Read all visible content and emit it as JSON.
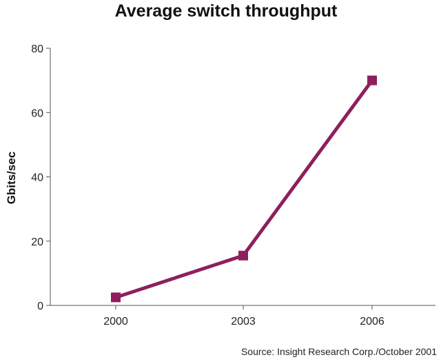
{
  "chart_data": {
    "type": "line",
    "title": "Average switch throughput",
    "ylabel": "Gbits/sec",
    "xlabel": "",
    "categories": [
      "2000",
      "2003",
      "2006"
    ],
    "series": [
      {
        "values": [
          2.5,
          15.5,
          70
        ]
      }
    ],
    "ylim": [
      0,
      80
    ],
    "yticks": [
      0,
      20,
      40,
      60,
      80
    ],
    "grid": false,
    "legend": "none",
    "source": "Source: Insight Research Corp./October 2001",
    "colors": {
      "line": "#8e1f5e",
      "marker": "#8e1f5e",
      "axis": "#555555"
    }
  }
}
